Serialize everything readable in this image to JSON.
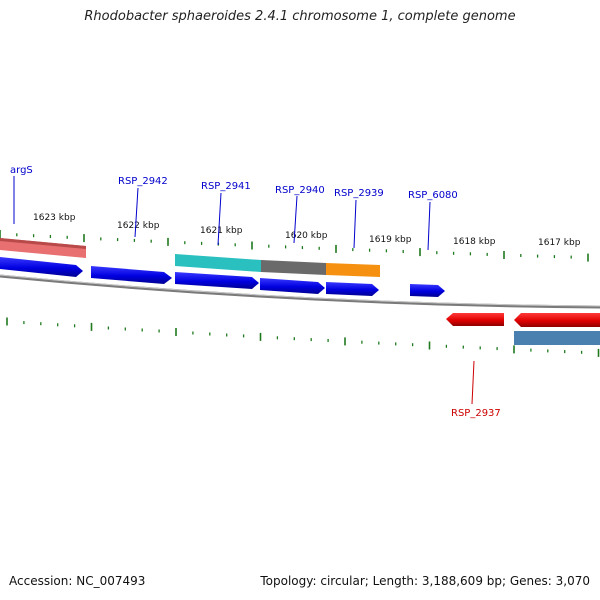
{
  "title": "Rhodobacter sphaeroides 2.4.1 chromosome 1, complete genome",
  "accession_text": "Accession: NC_007493",
  "topology_text": "Topology: circular; Length: 3,188,609 bp; Genes: 3,070",
  "colors": {
    "forward_cds": "#0000e0",
    "reverse_cds": "#e00000",
    "backbone": "#7a7a7a",
    "tick": "#1f7a1f",
    "forward_label": "#0000cc",
    "reverse_label": "#cc0000"
  },
  "scale_labels": [
    "1623 kbp",
    "1622 kbp",
    "1621 kbp",
    "1620 kbp",
    "1619 kbp",
    "1618 kbp",
    "1617 kbp"
  ],
  "gene_labels": [
    {
      "text": "argS",
      "strand": "forward"
    },
    {
      "text": "RSP_2942",
      "strand": "forward"
    },
    {
      "text": "RSP_2941",
      "strand": "forward"
    },
    {
      "text": "RSP_2940",
      "strand": "forward"
    },
    {
      "text": "RSP_2939",
      "strand": "forward"
    },
    {
      "text": "RSP_6080",
      "strand": "forward"
    },
    {
      "text": "RSP_2937",
      "strand": "reverse"
    }
  ],
  "features": [
    {
      "name": "salmon-feature",
      "color": "#e06a6a"
    },
    {
      "name": "cyan-feature",
      "color": "#2ac0c0"
    },
    {
      "name": "gray-feature",
      "color": "#6a6a6a"
    },
    {
      "name": "orange-feature",
      "color": "#f59010"
    },
    {
      "name": "steelblue-feature",
      "color": "#4a80b0"
    }
  ]
}
